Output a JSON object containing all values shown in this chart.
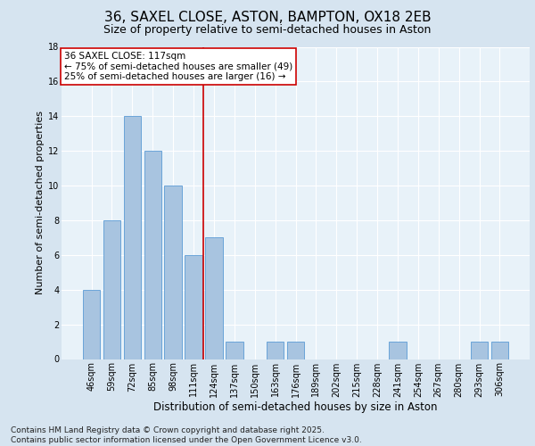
{
  "title": "36, SAXEL CLOSE, ASTON, BAMPTON, OX18 2EB",
  "subtitle": "Size of property relative to semi-detached houses in Aston",
  "xlabel": "Distribution of semi-detached houses by size in Aston",
  "ylabel": "Number of semi-detached properties",
  "footer_line1": "Contains HM Land Registry data © Crown copyright and database right 2025.",
  "footer_line2": "Contains public sector information licensed under the Open Government Licence v3.0.",
  "categories": [
    "46sqm",
    "59sqm",
    "72sqm",
    "85sqm",
    "98sqm",
    "111sqm",
    "124sqm",
    "137sqm",
    "150sqm",
    "163sqm",
    "176sqm",
    "189sqm",
    "202sqm",
    "215sqm",
    "228sqm",
    "241sqm",
    "254sqm",
    "267sqm",
    "280sqm",
    "293sqm",
    "306sqm"
  ],
  "values": [
    4,
    8,
    14,
    12,
    10,
    6,
    7,
    1,
    0,
    1,
    1,
    0,
    0,
    0,
    0,
    1,
    0,
    0,
    0,
    1,
    1
  ],
  "bar_color": "#a8c4e0",
  "bar_edge_color": "#5b9bd5",
  "vline_x": 5.5,
  "vline_color": "#cc0000",
  "annotation_title": "36 SAXEL CLOSE: 117sqm",
  "annotation_line1": "← 75% of semi-detached houses are smaller (49)",
  "annotation_line2": "25% of semi-detached houses are larger (16) →",
  "annotation_box_color": "#ffffff",
  "annotation_box_edge_color": "#cc0000",
  "ylim": [
    0,
    18
  ],
  "yticks": [
    0,
    2,
    4,
    6,
    8,
    10,
    12,
    14,
    16,
    18
  ],
  "bg_color": "#d6e4f0",
  "plot_bg_color": "#e8f2f9",
  "grid_color": "#ffffff",
  "title_fontsize": 11,
  "subtitle_fontsize": 9,
  "xlabel_fontsize": 8.5,
  "ylabel_fontsize": 8,
  "tick_fontsize": 7,
  "annotation_fontsize": 7.5,
  "footer_fontsize": 6.5
}
